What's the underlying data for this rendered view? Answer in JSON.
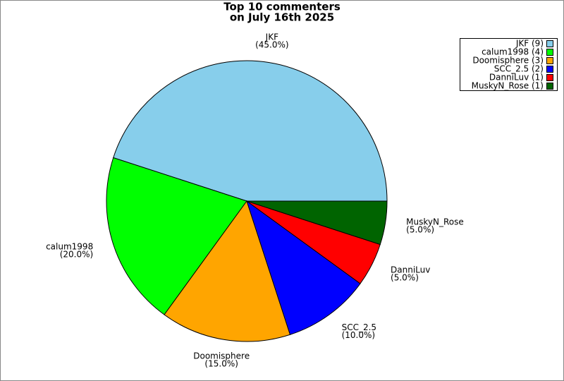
{
  "chart_data": {
    "type": "pie",
    "title": [
      "Top 10 commenters",
      "on July 16th 2025"
    ],
    "categories": [
      "JKF",
      "calum1998",
      "Doomisphere",
      "SCC_2.5",
      "DanniLuv",
      "MuskyN_Rose"
    ],
    "values": [
      45,
      20,
      15,
      10,
      5,
      5
    ],
    "value_labels": [
      "(45.0%)",
      "(20.0%)",
      "(15.0%)",
      "(10.0%)",
      "(5.0%)",
      "(5.0%)"
    ],
    "legend_labels": [
      "JKF (9)",
      "calum1998 (4)",
      "Doomisphere (3)",
      "SCC_2.5 (2)",
      "DanniLuv (1)",
      "MuskyN_Rose (1)"
    ],
    "colors": [
      "#87ceeb",
      "#00ff00",
      "#ffa500",
      "#0000ff",
      "#ff0000",
      "#006400"
    ],
    "legend": "upper right"
  }
}
